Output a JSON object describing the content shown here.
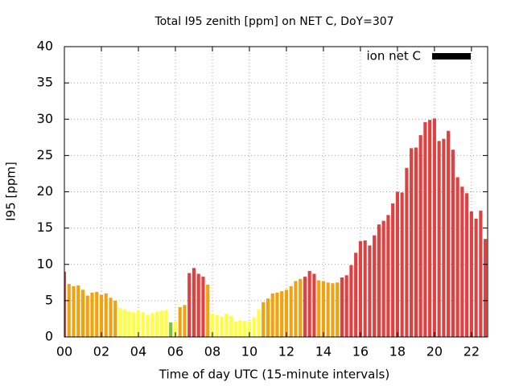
{
  "chart_data": {
    "type": "bar",
    "title": "Total I95 zenith [ppm] on NET C, DoY=307",
    "x_label": "Time of day UTC (15-minute intervals)",
    "y_label": "I95 [ppm]",
    "x": [
      0,
      0.25,
      0.5,
      0.75,
      1,
      1.25,
      1.5,
      1.75,
      2,
      2.25,
      2.5,
      2.75,
      3,
      3.25,
      3.5,
      3.75,
      4,
      4.25,
      4.5,
      4.75,
      5,
      5.25,
      5.5,
      5.75,
      6,
      6.25,
      6.5,
      6.75,
      7,
      7.25,
      7.5,
      7.75,
      8,
      8.25,
      8.5,
      8.75,
      9,
      9.25,
      9.5,
      9.75,
      10,
      10.25,
      10.5,
      10.75,
      11,
      11.25,
      11.5,
      11.75,
      12,
      12.25,
      12.5,
      12.75,
      13,
      13.25,
      13.5,
      13.75,
      14,
      14.25,
      14.5,
      14.75,
      15,
      15.25,
      15.5,
      15.75,
      16,
      16.25,
      16.5,
      16.75,
      17,
      17.25,
      17.5,
      17.75,
      18,
      18.25,
      18.5,
      18.75,
      19,
      19.25,
      19.5,
      19.75,
      20,
      20.25,
      20.5,
      20.75,
      21,
      21.25,
      21.5,
      21.75,
      22,
      22.25,
      22.5,
      22.75
    ],
    "series": [
      {
        "name": "ion net C",
        "color": "#000000",
        "values": [
          9.0,
          7.3,
          7.0,
          7.1,
          6.5,
          5.7,
          6.1,
          6.2,
          5.8,
          6.0,
          5.4,
          5.0,
          4.0,
          3.8,
          3.5,
          3.4,
          3.6,
          3.4,
          3.0,
          3.3,
          3.5,
          3.6,
          3.7,
          2.0,
          2.1,
          4.1,
          4.4,
          8.8,
          9.5,
          8.7,
          8.3,
          7.2,
          3.2,
          3.0,
          2.8,
          3.2,
          2.9,
          2.1,
          2.3,
          2.2,
          2.1,
          2.7,
          3.8,
          4.8,
          5.3,
          6.0,
          6.1,
          6.3,
          6.5,
          7.0,
          7.7,
          8.0,
          8.3,
          9.1,
          8.7,
          7.8,
          7.7,
          7.5,
          7.4,
          7.5,
          8.2,
          8.5,
          9.9,
          11.6,
          13.2,
          13.3,
          12.6,
          14.0,
          15.5,
          16.0,
          16.8,
          18.4,
          20.0,
          19.9,
          23.3,
          26.0,
          26.1,
          27.8,
          29.6,
          29.9,
          30.1,
          27.0,
          27.3,
          28.4,
          25.8,
          22.0,
          20.7,
          19.8,
          17.3,
          16.3,
          17.4,
          13.5
        ],
        "bar_colors": [
          "#e04040",
          "#f2a20d",
          "#f2a20d",
          "#f2a20d",
          "#f2a20d",
          "#f2a20d",
          "#f2a20d",
          "#f2a20d",
          "#f2a20d",
          "#f2a20d",
          "#f2a20d",
          "#f2a20d",
          "#ffff40",
          "#ffff40",
          "#ffff40",
          "#ffff40",
          "#ffff40",
          "#ffff40",
          "#ffff40",
          "#ffff40",
          "#ffff40",
          "#ffff40",
          "#ffff40",
          "#7dc142",
          "#ffff40",
          "#f2a20d",
          "#f2a20d",
          "#e04040",
          "#e04040",
          "#e04040",
          "#e04040",
          "#f2a20d",
          "#ffff40",
          "#ffff40",
          "#ffff40",
          "#ffff40",
          "#ffff40",
          "#ffff40",
          "#ffff40",
          "#ffff40",
          "#ffff40",
          "#ffff40",
          "#ffff40",
          "#f2a20d",
          "#f2a20d",
          "#f2a20d",
          "#f2a20d",
          "#f2a20d",
          "#f2a20d",
          "#f2a20d",
          "#f2a20d",
          "#f2a20d",
          "#e04040",
          "#e04040",
          "#e04040",
          "#f2a20d",
          "#f2a20d",
          "#f2a20d",
          "#f2a20d",
          "#f2a20d",
          "#e04040",
          "#e04040",
          "#e04040",
          "#e04040",
          "#e04040",
          "#e04040",
          "#e04040",
          "#e04040",
          "#e04040",
          "#e04040",
          "#e04040",
          "#e04040",
          "#e04040",
          "#e04040",
          "#e04040",
          "#e04040",
          "#e04040",
          "#e04040",
          "#e04040",
          "#e04040",
          "#e04040",
          "#e04040",
          "#e04040",
          "#e04040",
          "#e04040",
          "#e04040",
          "#e04040",
          "#e04040",
          "#e04040",
          "#e04040",
          "#e04040",
          "#e04040"
        ]
      }
    ],
    "xlim": [
      0,
      22.875
    ],
    "ylim": [
      0,
      40
    ],
    "xticks": [
      {
        "value": 0,
        "label": "00"
      },
      {
        "value": 2,
        "label": "02"
      },
      {
        "value": 4,
        "label": "04"
      },
      {
        "value": 6,
        "label": "06"
      },
      {
        "value": 8,
        "label": "08"
      },
      {
        "value": 10,
        "label": "10"
      },
      {
        "value": 12,
        "label": "12"
      },
      {
        "value": 14,
        "label": "14"
      },
      {
        "value": 16,
        "label": "16"
      },
      {
        "value": 18,
        "label": "18"
      },
      {
        "value": 20,
        "label": "20"
      },
      {
        "value": 22,
        "label": "22"
      }
    ],
    "yticks": [
      0,
      5,
      10,
      15,
      20,
      25,
      30,
      35,
      40
    ],
    "grid": true,
    "legend": "top-right"
  }
}
